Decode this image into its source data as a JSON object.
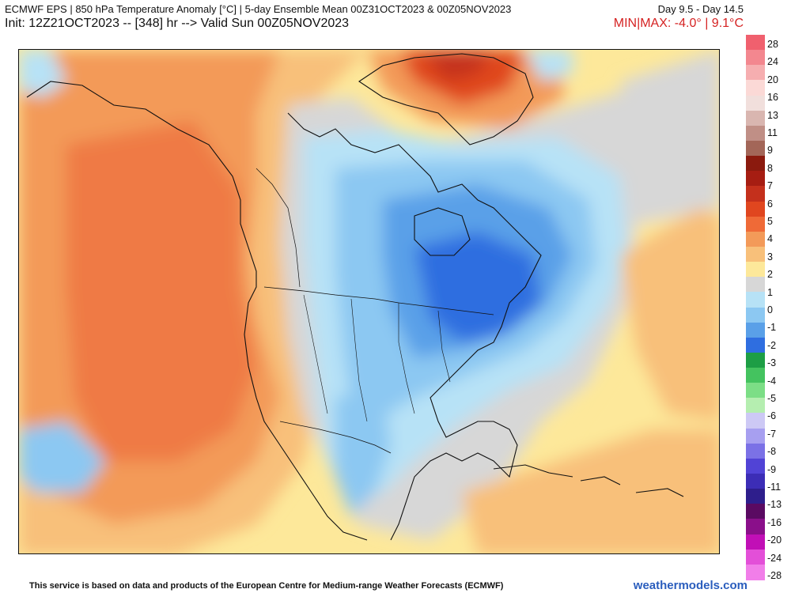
{
  "header": {
    "title_line": "ECMWF EPS | 850 hPa Temperature Anomaly [°C] | 5-day Ensemble Mean 00Z31OCT2023 & 00Z05NOV2023",
    "day_range": "Day 9.5 - Day 14.5",
    "init_line": "Init: 12Z21OCT2023 -- [348] hr --> Valid Sun 00Z05NOV2023",
    "minmax": "MIN|MAX: -4.0° | 9.1°C"
  },
  "legend": {
    "labels": [
      "28",
      "24",
      "20",
      "16",
      "13",
      "11",
      "9",
      "8",
      "7",
      "6",
      "5",
      "4",
      "3",
      "2",
      "1",
      "0",
      "-1",
      "-2",
      "-3",
      "-4",
      "-5",
      "-6",
      "-7",
      "-8",
      "-9",
      "-11",
      "-13",
      "-16",
      "-20",
      "-24",
      "-28"
    ],
    "colors": [
      "#f0606e",
      "#f3878f",
      "#f6aeb0",
      "#fbd9d6",
      "#f1dfdc",
      "#d9b6b0",
      "#c08f86",
      "#a36658",
      "#8b1a0e",
      "#a61d12",
      "#c4301c",
      "#e0461f",
      "#ef6a37",
      "#f39a59",
      "#f8c07a",
      "#fde89a",
      "#d7d7d7",
      "#b7e2f6",
      "#8cc8f2",
      "#5aa0e8",
      "#2f6ee0",
      "#1d9e45",
      "#44c35f",
      "#7cde86",
      "#b5eeb0",
      "#cdc9f5",
      "#a79ff0",
      "#7b71e6",
      "#5143d6",
      "#3c2db6",
      "#2e1e8c",
      "#5a0a62",
      "#8a0f8a",
      "#c10fb6",
      "#e34fd8",
      "#f17ee9"
    ]
  },
  "map": {
    "field": "850 hPa temperature anomaly",
    "max_region": "Greenland",
    "min_region": "Eastern Canada / Great Lakes"
  },
  "footer": {
    "text": "This service is based on data and products of the European Centre for Medium-range Weather Forecasts (ECMWF)",
    "site": "weathermodels.com"
  }
}
